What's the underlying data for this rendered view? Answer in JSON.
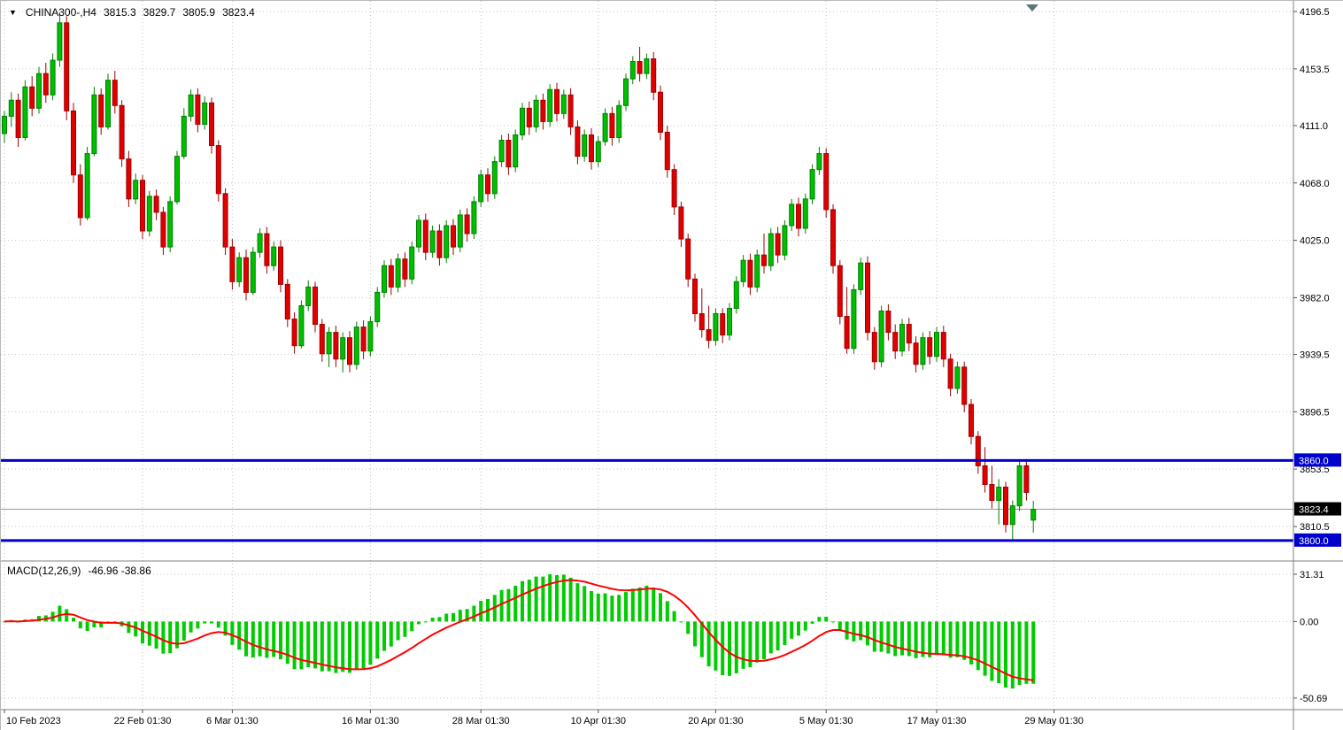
{
  "header": {
    "dropdown_icon": "▼",
    "symbol_period": "CHINA300-,H4",
    "open": "3815.3",
    "high": "3829.7",
    "low": "3805.9",
    "close": "3823.4"
  },
  "macd_panel": {
    "label": "MACD(12,26,9)",
    "values_text": "-46.96 -38.86",
    "macd_display": -46.96,
    "signal_display": -38.86,
    "tick_labels": [
      "31.31",
      "0.00",
      "-50.69"
    ],
    "tick_values": [
      31.31,
      0,
      -50.69
    ]
  },
  "price_axis": {
    "tick_labels": [
      "4196.5",
      "4153.5",
      "4111.0",
      "4068.0",
      "4025.0",
      "3982.0",
      "3939.5",
      "3896.5",
      "3853.5",
      "3810.5"
    ],
    "tick_values": [
      4196.5,
      4153.5,
      4111.0,
      4068.0,
      4025.0,
      3982.0,
      3939.5,
      3896.5,
      3853.5,
      3810.5
    ]
  },
  "time_axis": {
    "labels": [
      "10 Feb 2023",
      "22 Feb 01:30",
      "6 Mar 01:30",
      "16 Mar 01:30",
      "28 Mar 01:30",
      "10 Apr 01:30",
      "20 Apr 01:30",
      "5 May 01:30",
      "17 May 01:30",
      "29 May 01:30"
    ],
    "candle_indices": [
      0,
      20,
      33,
      53,
      69,
      86,
      103,
      119,
      135,
      152
    ]
  },
  "hlines": [
    {
      "value": 3860.0,
      "label": "3860.0"
    },
    {
      "value": 3800.0,
      "label": "3800.0"
    }
  ],
  "last_price": {
    "value": 3823.4,
    "label": "3823.4"
  },
  "colors": {
    "background": "#ffffff",
    "bull": "#00BE00",
    "bull_border": "#008000",
    "bear": "#E00000",
    "bear_border": "#A00000",
    "macd_hist": "#00CC00",
    "macd_signal": "#FF0000",
    "hline": "#0000CD",
    "grid": "#c6c6c6",
    "axis_text": "#000000",
    "last_price_bg": "#000000",
    "last_price_line": "#9a9a9a",
    "separator": "#808080",
    "shift_marker": "#5a7676"
  },
  "chart_data": [
    {
      "type": "candlestick",
      "title": "CHINA300-,H4",
      "symbol": "CHINA300-",
      "timeframe": "H4",
      "ylim": [
        3788,
        4202
      ],
      "grid": "dotted",
      "legend_position": "none",
      "candles": [
        [
          4105,
          4122,
          4098,
          4118
        ],
        [
          4118,
          4136,
          4110,
          4130
        ],
        [
          4130,
          4135,
          4095,
          4102
        ],
        [
          4102,
          4145,
          4100,
          4140
        ],
        [
          4140,
          4148,
          4118,
          4124
        ],
        [
          4124,
          4155,
          4120,
          4150
        ],
        [
          4150,
          4158,
          4128,
          4134
        ],
        [
          4134,
          4165,
          4130,
          4160
        ],
        [
          4160,
          4196,
          4155,
          4188
        ],
        [
          4188,
          4193,
          4115,
          4122
        ],
        [
          4122,
          4128,
          4068,
          4074
        ],
        [
          4074,
          4082,
          4036,
          4042
        ],
        [
          4042,
          4095,
          4040,
          4090
        ],
        [
          4090,
          4140,
          4088,
          4134
        ],
        [
          4134,
          4139,
          4104,
          4110
        ],
        [
          4110,
          4150,
          4108,
          4145
        ],
        [
          4145,
          4152,
          4120,
          4126
        ],
        [
          4126,
          4130,
          4080,
          4086
        ],
        [
          4086,
          4092,
          4050,
          4056
        ],
        [
          4056,
          4075,
          4052,
          4070
        ],
        [
          4070,
          4074,
          4026,
          4032
        ],
        [
          4032,
          4062,
          4028,
          4058
        ],
        [
          4058,
          4063,
          4040,
          4046
        ],
        [
          4046,
          4050,
          4014,
          4020
        ],
        [
          4020,
          4058,
          4016,
          4054
        ],
        [
          4054,
          4092,
          4052,
          4088
        ],
        [
          4088,
          4124,
          4086,
          4118
        ],
        [
          4118,
          4138,
          4114,
          4134
        ],
        [
          4134,
          4139,
          4106,
          4112
        ],
        [
          4112,
          4133,
          4108,
          4128
        ],
        [
          4128,
          4132,
          4090,
          4096
        ],
        [
          4096,
          4100,
          4054,
          4060
        ],
        [
          4060,
          4064,
          4014,
          4020
        ],
        [
          4020,
          4026,
          3988,
          3994
        ],
        [
          3994,
          4016,
          3990,
          4012
        ],
        [
          4012,
          4018,
          3980,
          3986
        ],
        [
          3986,
          4020,
          3984,
          4016
        ],
        [
          4016,
          4034,
          4012,
          4030
        ],
        [
          4030,
          4035,
          4000,
          4006
        ],
        [
          4006,
          4024,
          4002,
          4020
        ],
        [
          4020,
          4025,
          3986,
          3992
        ],
        [
          3992,
          3996,
          3960,
          3966
        ],
        [
          3966,
          3971,
          3940,
          3946
        ],
        [
          3946,
          3980,
          3944,
          3976
        ],
        [
          3976,
          3995,
          3972,
          3990
        ],
        [
          3990,
          3994,
          3956,
          3962
        ],
        [
          3962,
          3966,
          3934,
          3940
        ],
        [
          3940,
          3960,
          3930,
          3956
        ],
        [
          3956,
          3961,
          3930,
          3936
        ],
        [
          3936,
          3956,
          3926,
          3952
        ],
        [
          3952,
          3957,
          3926,
          3932
        ],
        [
          3932,
          3964,
          3928,
          3960
        ],
        [
          3960,
          3965,
          3936,
          3942
        ],
        [
          3942,
          3968,
          3938,
          3964
        ],
        [
          3964,
          3990,
          3960,
          3986
        ],
        [
          3986,
          4010,
          3982,
          4006
        ],
        [
          4006,
          4011,
          3984,
          3990
        ],
        [
          3990,
          4015,
          3986,
          4011
        ],
        [
          4011,
          4016,
          3990,
          3996
        ],
        [
          3996,
          4024,
          3992,
          4020
        ],
        [
          4020,
          4044,
          4016,
          4040
        ],
        [
          4040,
          4045,
          4010,
          4016
        ],
        [
          4016,
          4036,
          4012,
          4032
        ],
        [
          4032,
          4037,
          4006,
          4012
        ],
        [
          4012,
          4040,
          4008,
          4036
        ],
        [
          4036,
          4041,
          4014,
          4020
        ],
        [
          4020,
          4048,
          4016,
          4044
        ],
        [
          4044,
          4049,
          4024,
          4030
        ],
        [
          4030,
          4058,
          4026,
          4054
        ],
        [
          4054,
          4078,
          4050,
          4074
        ],
        [
          4074,
          4079,
          4054,
          4060
        ],
        [
          4060,
          4088,
          4056,
          4084
        ],
        [
          4084,
          4104,
          4080,
          4100
        ],
        [
          4100,
          4105,
          4074,
          4080
        ],
        [
          4080,
          4108,
          4076,
          4104
        ],
        [
          4104,
          4128,
          4100,
          4124
        ],
        [
          4124,
          4129,
          4104,
          4110
        ],
        [
          4110,
          4134,
          4106,
          4130
        ],
        [
          4130,
          4135,
          4108,
          4114
        ],
        [
          4114,
          4142,
          4110,
          4138
        ],
        [
          4138,
          4143,
          4114,
          4120
        ],
        [
          4120,
          4138,
          4116,
          4134
        ],
        [
          4134,
          4139,
          4104,
          4110
        ],
        [
          4110,
          4115,
          4082,
          4088
        ],
        [
          4088,
          4108,
          4084,
          4104
        ],
        [
          4104,
          4109,
          4078,
          4084
        ],
        [
          4084,
          4103,
          4080,
          4099
        ],
        [
          4099,
          4124,
          4096,
          4120
        ],
        [
          4120,
          4125,
          4096,
          4102
        ],
        [
          4102,
          4130,
          4098,
          4126
        ],
        [
          4126,
          4150,
          4122,
          4146
        ],
        [
          4146,
          4163,
          4142,
          4159
        ],
        [
          4159,
          4170,
          4144,
          4150
        ],
        [
          4150,
          4165,
          4146,
          4161
        ],
        [
          4161,
          4166,
          4130,
          4136
        ],
        [
          4136,
          4141,
          4100,
          4106
        ],
        [
          4106,
          4111,
          4072,
          4078
        ],
        [
          4078,
          4082,
          4044,
          4050
        ],
        [
          4050,
          4054,
          4020,
          4026
        ],
        [
          4026,
          4030,
          3990,
          3996
        ],
        [
          3996,
          4000,
          3964,
          3970
        ],
        [
          3970,
          3989,
          3952,
          3958
        ],
        [
          3958,
          3976,
          3944,
          3950
        ],
        [
          3950,
          3974,
          3946,
          3970
        ],
        [
          3970,
          3974,
          3948,
          3954
        ],
        [
          3954,
          3978,
          3950,
          3974
        ],
        [
          3974,
          3998,
          3970,
          3994
        ],
        [
          3994,
          4014,
          3990,
          4010
        ],
        [
          4010,
          4015,
          3984,
          3990
        ],
        [
          3990,
          4018,
          3986,
          4014
        ],
        [
          4014,
          4030,
          4000,
          4006
        ],
        [
          4006,
          4034,
          4002,
          4030
        ],
        [
          4030,
          4035,
          4008,
          4014
        ],
        [
          4014,
          4040,
          4010,
          4036
        ],
        [
          4036,
          4056,
          4032,
          4052
        ],
        [
          4052,
          4057,
          4028,
          4034
        ],
        [
          4034,
          4060,
          4030,
          4056
        ],
        [
          4056,
          4082,
          4052,
          4078
        ],
        [
          4078,
          4095,
          4074,
          4090
        ],
        [
          4090,
          4094,
          4042,
          4048
        ],
        [
          4048,
          4052,
          4000,
          4006
        ],
        [
          4006,
          4010,
          3962,
          3968
        ],
        [
          3968,
          3990,
          3940,
          3944
        ],
        [
          3944,
          3992,
          3940,
          3988
        ],
        [
          3988,
          4012,
          3984,
          4008
        ],
        [
          4008,
          4013,
          3950,
          3956
        ],
        [
          3956,
          3960,
          3928,
          3934
        ],
        [
          3934,
          3976,
          3930,
          3972
        ],
        [
          3972,
          3977,
          3950,
          3956
        ],
        [
          3956,
          3962,
          3936,
          3942
        ],
        [
          3942,
          3966,
          3938,
          3962
        ],
        [
          3962,
          3967,
          3942,
          3948
        ],
        [
          3948,
          3953,
          3926,
          3932
        ],
        [
          3932,
          3956,
          3928,
          3952
        ],
        [
          3952,
          3957,
          3932,
          3938
        ],
        [
          3938,
          3960,
          3934,
          3956
        ],
        [
          3956,
          3961,
          3930,
          3936
        ],
        [
          3936,
          3940,
          3908,
          3914
        ],
        [
          3914,
          3934,
          3910,
          3930
        ],
        [
          3930,
          3934,
          3896,
          3902
        ],
        [
          3902,
          3906,
          3872,
          3878
        ],
        [
          3878,
          3882,
          3850,
          3856
        ],
        [
          3856,
          3870,
          3836,
          3842
        ],
        [
          3842,
          3856,
          3824,
          3830
        ],
        [
          3830,
          3846,
          3812,
          3840
        ],
        [
          3840,
          3844,
          3806,
          3812
        ],
        [
          3812,
          3830,
          3800,
          3826
        ],
        [
          3826,
          3860,
          3822,
          3856
        ],
        [
          3856,
          3861,
          3830,
          3836
        ],
        [
          3815.3,
          3829.7,
          3805.9,
          3823.4
        ]
      ]
    },
    {
      "type": "bar",
      "indicator": "MACD",
      "params": [
        12,
        26,
        9
      ],
      "macd_display": -46.96,
      "signal_display": -38.86,
      "ylim": [
        -56.5,
        38.3
      ],
      "derived_from": "closes of chart_data[0].candles via EMA(12)-EMA(26), signal = EMA(9) of MACD",
      "histogram_color_key": "macd_hist",
      "signal_color_key": "macd_signal"
    }
  ]
}
